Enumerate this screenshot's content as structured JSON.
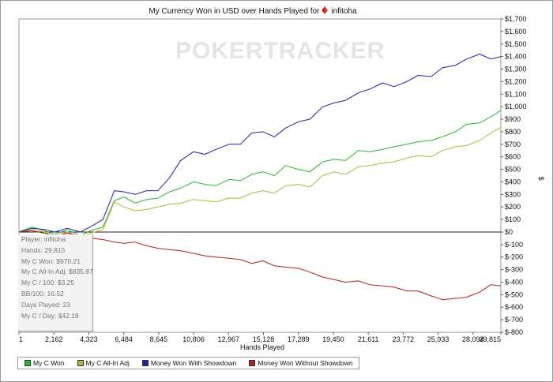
{
  "title": {
    "text": "My Currency Won in USD over Hands Played for",
    "player": "infitoha"
  },
  "watermark": "POKERTRACKER",
  "stats": [
    "Player: infitoha",
    "Hands: 29,815",
    "My C Won: $970.21",
    "My C All-In Adj: $835.97",
    "My C / 100: $3.25",
    "BB/100: 16.52",
    "Days Played: 23",
    "My C / Day: $42.18"
  ],
  "chart_data": {
    "type": "line",
    "title": "My Currency Won in USD over Hands Played for infitoha",
    "xlabel": "Hands Played",
    "ylabel": "$",
    "xlim": [
      1,
      29815
    ],
    "ylim": [
      -800,
      1700
    ],
    "x_ticks": [
      "1",
      "2,162",
      "4,323",
      "6,484",
      "8,645",
      "10,806",
      "12,967",
      "15,128",
      "17,289",
      "19,450",
      "21,611",
      "23,772",
      "25,933",
      "28,094",
      "29,815"
    ],
    "x_tick_values": [
      1,
      2162,
      4323,
      6484,
      8645,
      10806,
      12967,
      15128,
      17289,
      19450,
      21611,
      23772,
      25933,
      28094,
      29815
    ],
    "y_ticks": [
      "$-800",
      "$-700",
      "$-600",
      "$-500",
      "$-400",
      "$-300",
      "$-200",
      "$-100",
      "$0",
      "$100",
      "$200",
      "$300",
      "$400",
      "$500",
      "$600",
      "$700",
      "$800",
      "$900",
      "$1,000",
      "$1,100",
      "$1,200",
      "$1,300",
      "$1,400",
      "$1,500",
      "$1,600",
      "$1,700"
    ],
    "y_tick_values": [
      -800,
      -700,
      -600,
      -500,
      -400,
      -300,
      -200,
      -100,
      0,
      100,
      200,
      300,
      400,
      500,
      600,
      700,
      800,
      900,
      1000,
      1100,
      1200,
      1300,
      1400,
      1500,
      1600,
      1700
    ],
    "grid": false,
    "legend_position": "bottom",
    "series": [
      {
        "name": "My C Won",
        "color": "#2db52d",
        "x": [
          1,
          800,
          1600,
          2200,
          3000,
          3800,
          4400,
          5200,
          5900,
          6500,
          7200,
          7900,
          8600,
          9300,
          10000,
          10800,
          11500,
          12200,
          13000,
          13700,
          14400,
          15100,
          15800,
          16500,
          17300,
          18000,
          18800,
          19500,
          20200,
          21000,
          21700,
          22500,
          23200,
          24000,
          24700,
          25500,
          26200,
          27000,
          27700,
          28500,
          29200,
          29815
        ],
        "y": [
          0,
          40,
          10,
          -20,
          20,
          -30,
          10,
          40,
          250,
          280,
          230,
          260,
          270,
          320,
          350,
          400,
          380,
          370,
          420,
          410,
          460,
          480,
          450,
          530,
          500,
          480,
          560,
          580,
          570,
          650,
          640,
          660,
          680,
          700,
          720,
          730,
          760,
          800,
          860,
          870,
          920,
          970
        ]
      },
      {
        "name": "My C All-In Adj",
        "color": "#b6b634",
        "x": [
          1,
          800,
          1600,
          2200,
          3000,
          3800,
          4400,
          5200,
          5900,
          6500,
          7200,
          7900,
          8600,
          9300,
          10000,
          10800,
          11500,
          12200,
          13000,
          13700,
          14400,
          15100,
          15800,
          16500,
          17300,
          18000,
          18800,
          19500,
          20200,
          21000,
          21700,
          22500,
          23200,
          24000,
          24700,
          25500,
          26200,
          27000,
          27700,
          28500,
          29200,
          29815
        ],
        "y": [
          0,
          20,
          0,
          -40,
          0,
          -40,
          -10,
          20,
          240,
          200,
          170,
          180,
          200,
          220,
          230,
          260,
          250,
          240,
          270,
          270,
          310,
          330,
          310,
          370,
          380,
          360,
          450,
          480,
          460,
          520,
          530,
          550,
          560,
          590,
          610,
          600,
          650,
          680,
          690,
          730,
          790,
          836
        ]
      },
      {
        "name": "Money Won With Showdown",
        "color": "#1f1fa8",
        "x": [
          1,
          800,
          1600,
          2200,
          3000,
          3800,
          4400,
          5200,
          5900,
          6500,
          7200,
          7900,
          8600,
          9300,
          10000,
          10800,
          11500,
          12200,
          13000,
          13700,
          14400,
          15100,
          15800,
          16500,
          17300,
          18000,
          18800,
          19500,
          20200,
          21000,
          21700,
          22500,
          23200,
          24000,
          24700,
          25500,
          26200,
          27000,
          27700,
          28500,
          29200,
          29815
        ],
        "y": [
          0,
          30,
          20,
          0,
          30,
          0,
          40,
          100,
          330,
          320,
          300,
          330,
          330,
          430,
          570,
          640,
          620,
          660,
          700,
          700,
          790,
          800,
          760,
          830,
          880,
          900,
          1000,
          1030,
          1050,
          1110,
          1140,
          1190,
          1160,
          1200,
          1250,
          1240,
          1310,
          1330,
          1380,
          1420,
          1380,
          1400
        ]
      },
      {
        "name": "Money Won Without Showdown",
        "color": "#b01f1f",
        "x": [
          1,
          800,
          1600,
          2200,
          3000,
          3800,
          4400,
          5200,
          5900,
          6500,
          7200,
          7900,
          8600,
          9300,
          10000,
          10800,
          11500,
          12200,
          13000,
          13700,
          14400,
          15100,
          15800,
          16500,
          17300,
          18000,
          18800,
          19500,
          20200,
          21000,
          21700,
          22500,
          23200,
          24000,
          24700,
          25500,
          26200,
          27000,
          27700,
          28500,
          29200,
          29815
        ],
        "y": [
          0,
          10,
          -10,
          -30,
          -10,
          -30,
          -50,
          -60,
          -80,
          -90,
          -80,
          -110,
          -130,
          -140,
          -150,
          -170,
          -190,
          -200,
          -210,
          -220,
          -250,
          -230,
          -270,
          -280,
          -290,
          -320,
          -360,
          -380,
          -400,
          -390,
          -420,
          -430,
          -440,
          -470,
          -470,
          -510,
          -540,
          -530,
          -520,
          -480,
          -420,
          -430
        ]
      }
    ]
  }
}
